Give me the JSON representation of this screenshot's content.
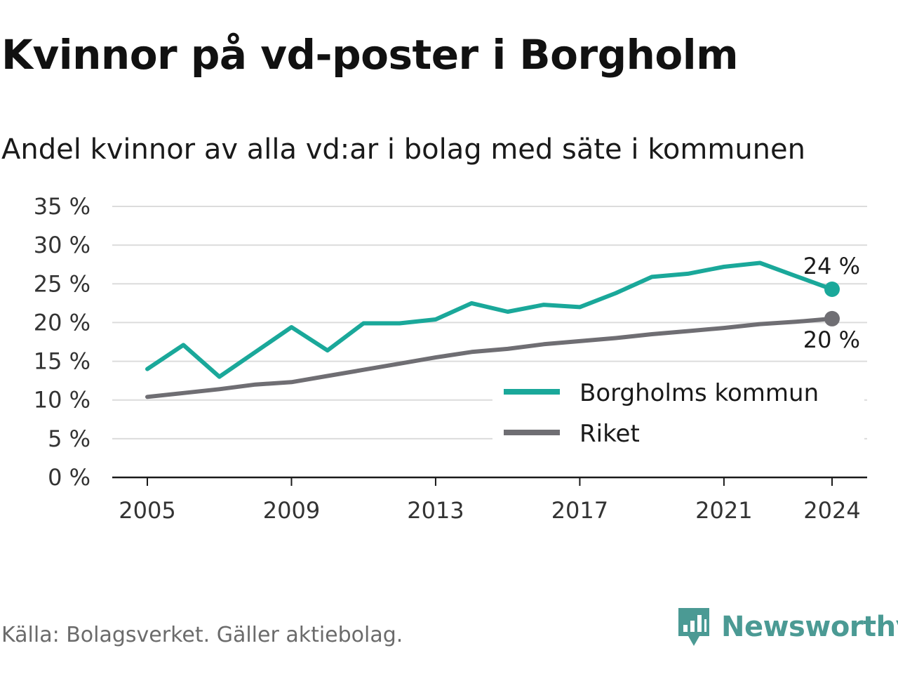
{
  "title": "Kvinnor på vd-poster i Borgholm",
  "subtitle": "Andel kvinnor av alla vd:ar i bolag med säte i kommunen",
  "source": "Källa: Bolagsverket. Gäller aktiebolag.",
  "brand": {
    "name": "Newsworthy",
    "icon": "newsworthy-logo-icon",
    "color": "#4b9a94"
  },
  "chart_data": {
    "type": "line",
    "x": [
      2005,
      2006,
      2007,
      2008,
      2009,
      2010,
      2011,
      2012,
      2013,
      2014,
      2015,
      2016,
      2017,
      2018,
      2019,
      2020,
      2021,
      2022,
      2023,
      2024
    ],
    "series": [
      {
        "name": "Borgholms kommun",
        "color": "#1aa89a",
        "values": [
          14.0,
          17.1,
          13.0,
          16.2,
          19.4,
          16.4,
          19.9,
          19.9,
          20.4,
          22.5,
          21.4,
          22.3,
          22.0,
          23.8,
          25.9,
          26.3,
          27.2,
          27.7,
          26.0,
          24.3
        ],
        "end_label": "24 %"
      },
      {
        "name": "Riket",
        "color": "#6f6e73",
        "values": [
          10.4,
          10.9,
          11.4,
          12.0,
          12.3,
          13.1,
          13.9,
          14.7,
          15.5,
          16.2,
          16.6,
          17.2,
          17.6,
          18.0,
          18.5,
          18.9,
          19.3,
          19.8,
          20.1,
          20.5
        ],
        "end_label": "20 %"
      }
    ],
    "y_ticks": [
      0,
      5,
      10,
      15,
      20,
      25,
      30,
      35
    ],
    "y_tick_labels": [
      "0 %",
      "5 %",
      "10 %",
      "15 %",
      "20 %",
      "25 %",
      "30 %",
      "35 %"
    ],
    "x_ticks": [
      2005,
      2009,
      2013,
      2017,
      2021,
      2024
    ],
    "x_tick_labels": [
      "2005",
      "2009",
      "2013",
      "2017",
      "2021",
      "2024"
    ],
    "ylim": [
      0,
      35
    ],
    "xlim": [
      2004,
      2025
    ],
    "grid": true,
    "legend_position": "bottom-right"
  }
}
